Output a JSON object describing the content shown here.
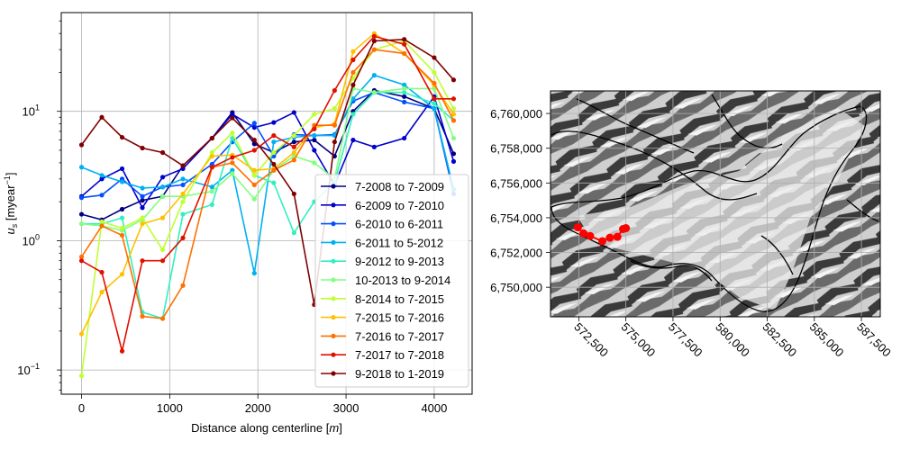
{
  "chart_data": [
    {
      "type": "line",
      "title": "",
      "xlabel": "Distance along centerline [m]",
      "xlabel_parts": [
        "Distance along centerline ",
        "[",
        "m",
        "]"
      ],
      "ylabel": "u_s [myear^-1]",
      "ylabel_parts": [
        "u",
        "s",
        " [myear",
        "−1",
        "]"
      ],
      "yscale": "log",
      "xlim": [
        -230,
        4430
      ],
      "ylim": [
        0.065,
        58
      ],
      "xticks": [
        0,
        1000,
        2000,
        3000,
        4000
      ],
      "xtick_labels": [
        "0",
        "1000",
        "2000",
        "3000",
        "4000"
      ],
      "yticks": [
        0.1,
        1,
        10
      ],
      "ytick_labels": [
        {
          "base": "10",
          "exp": "−1"
        },
        {
          "base": "10",
          "exp": "0"
        },
        {
          "base": "10",
          "exp": "1"
        }
      ],
      "grid": true,
      "legend_position": "lower-right",
      "x": [
        0,
        230,
        460,
        690,
        920,
        1150,
        1480,
        1710,
        1960,
        2180,
        2410,
        2640,
        2870,
        3080,
        3320,
        3660,
        4000,
        4220
      ],
      "series": [
        {
          "name": "7-2008 to 7-2009",
          "color": "#000080",
          "values": [
            1.6,
            1.45,
            1.75,
            2.05,
            2.2,
            3.8,
            6.2,
            9.8,
            5.6,
            4.8,
            5.8,
            6.0,
            4.5,
            10.0,
            14.5,
            13.0,
            10.5,
            4.7
          ]
        },
        {
          "name": "6-2009 to 7-2010",
          "color": "#0000cd",
          "values": [
            2.2,
            3.0,
            3.6,
            1.8,
            3.1,
            3.6,
            6.2,
            9.5,
            7.5,
            8.2,
            9.8,
            5.0,
            2.7,
            6.0,
            5.3,
            6.2,
            13.0,
            4.1
          ]
        },
        {
          "name": "6-2010 to 6-2011",
          "color": "#0050ff",
          "values": [
            2.15,
            2.25,
            3.0,
            2.2,
            2.6,
            2.7,
            3.9,
            5.8,
            8.1,
            4.5,
            6.6,
            6.5,
            6.6,
            12.0,
            14.0,
            11.8,
            10.5,
            2.3
          ]
        },
        {
          "name": "6-2011 to 5-2012",
          "color": "#00b0f0",
          "values": [
            3.7,
            3.2,
            2.85,
            2.55,
            2.6,
            3.0,
            2.6,
            3.5,
            0.56,
            5.8,
            6.3,
            6.5,
            6.5,
            12.5,
            19.0,
            16.0,
            10.5,
            2.5
          ]
        },
        {
          "name": "9-2012 to 9-2013",
          "color": "#30f0c0",
          "values": [
            1.35,
            1.35,
            1.5,
            0.28,
            0.25,
            1.6,
            1.9,
            6.2,
            3.2,
            2.8,
            1.15,
            2.0,
            2.8,
            9.5,
            14.0,
            14.0,
            11.5,
            8.5
          ]
        },
        {
          "name": "10-2013 to 9-2014",
          "color": "#80ff80",
          "values": [
            1.35,
            1.3,
            1.2,
            1.45,
            2.2,
            2.2,
            2.4,
            3.3,
            2.1,
            3.5,
            4.5,
            4.0,
            3.0,
            15.0,
            14.0,
            15.0,
            15.0,
            6.2
          ]
        },
        {
          "name": "8-2014 to 7-2015",
          "color": "#c0ff30",
          "values": [
            0.09,
            1.4,
            1.25,
            1.5,
            0.85,
            2.0,
            4.8,
            6.8,
            3.2,
            4.8,
            6.5,
            9.5,
            10.5,
            18.0,
            30.0,
            35.0,
            20.0,
            10.5
          ]
        },
        {
          "name": "7-2015 to 7-2016",
          "color": "#ffc000",
          "values": [
            0.19,
            0.4,
            0.55,
            1.35,
            1.5,
            2.3,
            4.5,
            4.6,
            3.5,
            3.6,
            4.8,
            7.5,
            8.0,
            29.0,
            40.0,
            28.0,
            16.0,
            9.5
          ]
        },
        {
          "name": "7-2016 to 7-2017",
          "color": "#ff7000",
          "values": [
            0.75,
            1.3,
            1.1,
            0.26,
            0.25,
            0.45,
            3.7,
            4.0,
            2.7,
            3.5,
            4.2,
            7.8,
            7.8,
            20.0,
            30.0,
            28.0,
            16.5,
            8.5
          ]
        },
        {
          "name": "7-2017 to 7-2018",
          "color": "#e01000",
          "values": [
            0.7,
            0.57,
            0.14,
            0.7,
            0.7,
            1.05,
            3.7,
            4.4,
            5.0,
            6.5,
            5.3,
            7.3,
            14.5,
            25.0,
            38.0,
            33.0,
            12.5,
            12.5
          ]
        },
        {
          "name": "9-2018 to 1-2019",
          "color": "#800000",
          "values": [
            5.5,
            9.0,
            6.3,
            5.2,
            4.8,
            3.8,
            6.2,
            8.9,
            6.0,
            3.9,
            2.3,
            0.32,
            5.8,
            16.0,
            35.0,
            36.0,
            26.0,
            17.5
          ]
        }
      ]
    },
    {
      "type": "map",
      "title": "",
      "xlim": [
        571000,
        588500
      ],
      "ylim": [
        6748300,
        6761300
      ],
      "xticks": [
        572500,
        575000,
        577500,
        580000,
        582500,
        585000,
        587500
      ],
      "xtick_labels": [
        "572,500",
        "575,000",
        "577,500",
        "580,000",
        "582,500",
        "585,000",
        "587,500"
      ],
      "yticks": [
        6750000,
        6752000,
        6754000,
        6756000,
        6758000,
        6760000
      ],
      "ytick_labels": [
        "6,750,000",
        "6,752,000",
        "6,754,000",
        "6,756,000",
        "6,758,000",
        "6,760,000"
      ],
      "grid": true,
      "basemap": "grayscale hillshade with black glacier outlines",
      "centerline_color": "#ff0000",
      "centerline": [
        {
          "x": 572450,
          "y": 6753450
        },
        {
          "x": 572750,
          "y": 6753100
        },
        {
          "x": 573100,
          "y": 6752950
        },
        {
          "x": 573750,
          "y": 6752650
        },
        {
          "x": 574150,
          "y": 6752850
        },
        {
          "x": 574550,
          "y": 6752900
        },
        {
          "x": 574850,
          "y": 6753350
        },
        {
          "x": 575000,
          "y": 6753400
        }
      ]
    }
  ]
}
